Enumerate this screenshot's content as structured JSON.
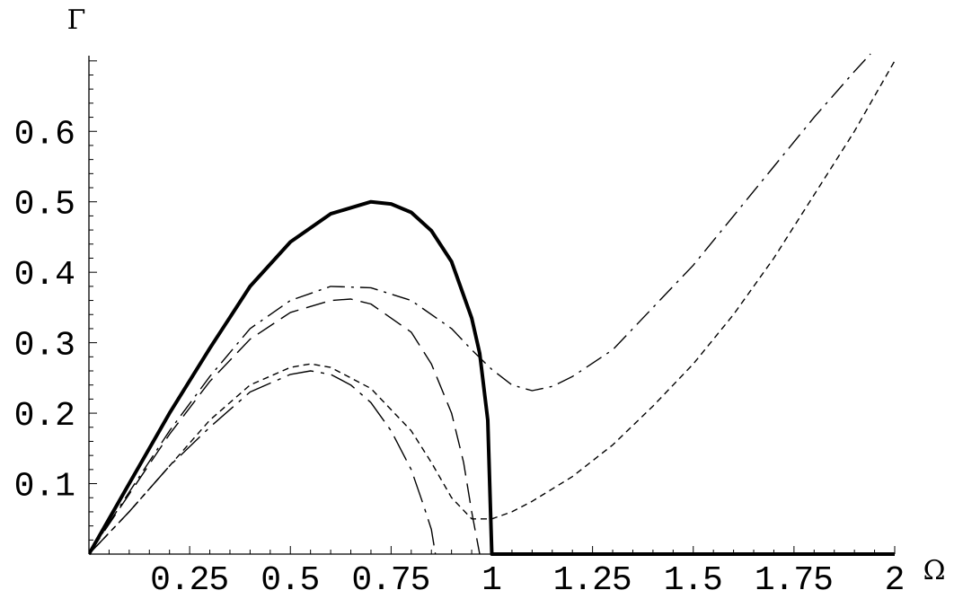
{
  "chart_data": {
    "type": "line",
    "title": "",
    "xlabel": "Ω",
    "ylabel": "Γ",
    "xlim": [
      0,
      2
    ],
    "ylim": [
      0,
      0.7
    ],
    "grid": false,
    "legend": "none",
    "x_ticks": [
      {
        "value": 0.25,
        "label": "0.25"
      },
      {
        "value": 0.5,
        "label": "0.5"
      },
      {
        "value": 0.75,
        "label": "0.75"
      },
      {
        "value": 1,
        "label": "1"
      },
      {
        "value": 1.25,
        "label": "1.25"
      },
      {
        "value": 1.5,
        "label": "1.5"
      },
      {
        "value": 1.75,
        "label": "1.75"
      },
      {
        "value": 2,
        "label": "2"
      }
    ],
    "y_ticks": [
      {
        "value": 0.1,
        "label": "0.1"
      },
      {
        "value": 0.2,
        "label": "0.2"
      },
      {
        "value": 0.3,
        "label": "0.3"
      },
      {
        "value": 0.4,
        "label": "0.4"
      },
      {
        "value": 0.5,
        "label": "0.5"
      },
      {
        "value": 0.6,
        "label": "0.6"
      }
    ],
    "series": [
      {
        "style": "solid-thick",
        "points": [
          [
            0,
            0
          ],
          [
            0.1,
            0.1
          ],
          [
            0.2,
            0.2
          ],
          [
            0.3,
            0.292
          ],
          [
            0.4,
            0.38
          ],
          [
            0.5,
            0.443
          ],
          [
            0.6,
            0.483
          ],
          [
            0.7,
            0.5
          ],
          [
            0.75,
            0.497
          ],
          [
            0.8,
            0.485
          ],
          [
            0.85,
            0.459
          ],
          [
            0.9,
            0.415
          ],
          [
            0.95,
            0.335
          ],
          [
            0.97,
            0.285
          ],
          [
            0.99,
            0.19
          ],
          [
            1.0,
            0.0
          ],
          [
            2.0,
            0.0
          ]
        ]
      },
      {
        "style": "long-dash",
        "points": [
          [
            0,
            0
          ],
          [
            0.1,
            0.085
          ],
          [
            0.2,
            0.17
          ],
          [
            0.3,
            0.245
          ],
          [
            0.4,
            0.305
          ],
          [
            0.5,
            0.343
          ],
          [
            0.6,
            0.36
          ],
          [
            0.65,
            0.362
          ],
          [
            0.7,
            0.355
          ],
          [
            0.8,
            0.315
          ],
          [
            0.85,
            0.27
          ],
          [
            0.9,
            0.2
          ],
          [
            0.93,
            0.13
          ],
          [
            0.95,
            0.06
          ],
          [
            0.97,
            0.0
          ]
        ]
      },
      {
        "style": "dash-dot",
        "points": [
          [
            0,
            0
          ],
          [
            0.1,
            0.088
          ],
          [
            0.2,
            0.175
          ],
          [
            0.3,
            0.252
          ],
          [
            0.4,
            0.32
          ],
          [
            0.5,
            0.36
          ],
          [
            0.6,
            0.38
          ],
          [
            0.7,
            0.378
          ],
          [
            0.8,
            0.36
          ],
          [
            0.9,
            0.32
          ],
          [
            0.95,
            0.29
          ],
          [
            1.0,
            0.262
          ],
          [
            1.05,
            0.24
          ],
          [
            1.1,
            0.232
          ],
          [
            1.15,
            0.238
          ],
          [
            1.2,
            0.252
          ],
          [
            1.3,
            0.29
          ],
          [
            1.4,
            0.35
          ],
          [
            1.5,
            0.41
          ],
          [
            1.6,
            0.48
          ],
          [
            1.7,
            0.55
          ],
          [
            1.8,
            0.62
          ],
          [
            1.9,
            0.685
          ],
          [
            1.94,
            0.71
          ]
        ]
      },
      {
        "style": "short-dash",
        "points": [
          [
            0,
            0
          ],
          [
            0.1,
            0.06
          ],
          [
            0.2,
            0.125
          ],
          [
            0.3,
            0.19
          ],
          [
            0.4,
            0.24
          ],
          [
            0.5,
            0.265
          ],
          [
            0.55,
            0.27
          ],
          [
            0.6,
            0.265
          ],
          [
            0.7,
            0.235
          ],
          [
            0.8,
            0.175
          ],
          [
            0.85,
            0.13
          ],
          [
            0.9,
            0.08
          ],
          [
            0.95,
            0.05
          ],
          [
            1.0,
            0.05
          ],
          [
            1.05,
            0.06
          ],
          [
            1.1,
            0.075
          ],
          [
            1.2,
            0.11
          ],
          [
            1.3,
            0.155
          ],
          [
            1.4,
            0.21
          ],
          [
            1.5,
            0.27
          ],
          [
            1.6,
            0.34
          ],
          [
            1.7,
            0.42
          ],
          [
            1.8,
            0.51
          ],
          [
            1.9,
            0.6
          ],
          [
            2.0,
            0.7
          ]
        ]
      },
      {
        "style": "dash-dot-long",
        "points": [
          [
            0,
            0
          ],
          [
            0.1,
            0.06
          ],
          [
            0.2,
            0.125
          ],
          [
            0.3,
            0.18
          ],
          [
            0.4,
            0.23
          ],
          [
            0.5,
            0.255
          ],
          [
            0.55,
            0.26
          ],
          [
            0.6,
            0.255
          ],
          [
            0.65,
            0.24
          ],
          [
            0.7,
            0.215
          ],
          [
            0.75,
            0.175
          ],
          [
            0.8,
            0.12
          ],
          [
            0.83,
            0.07
          ],
          [
            0.85,
            0.035
          ],
          [
            0.86,
            0.0
          ]
        ]
      }
    ]
  }
}
